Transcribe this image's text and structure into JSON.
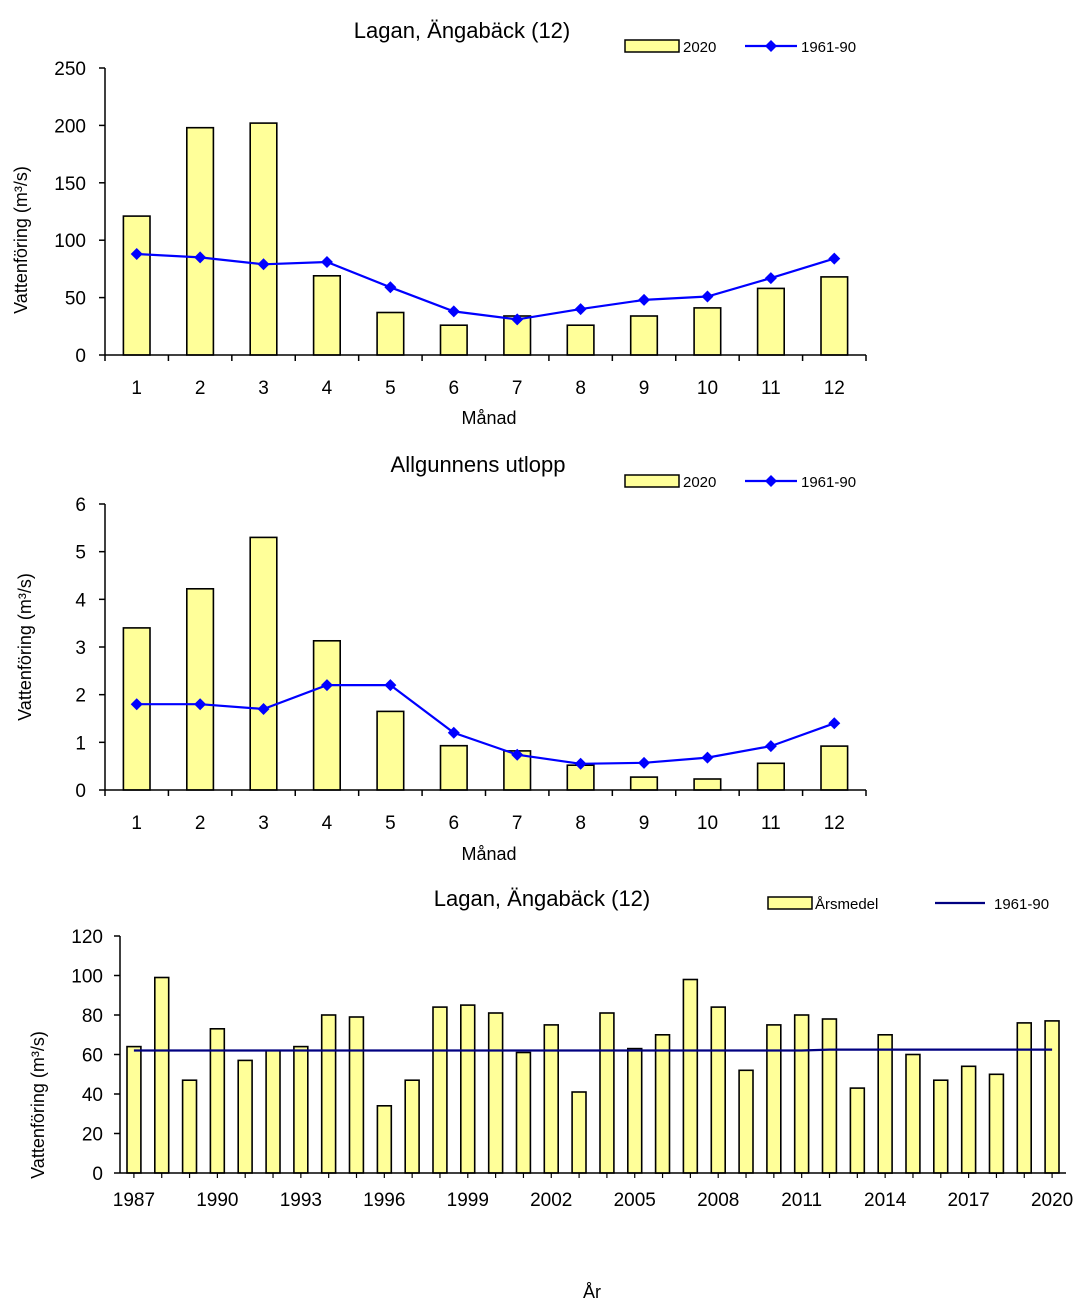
{
  "colors": {
    "bar_fill": "#FFFF99",
    "bar_stroke": "#000000",
    "line": "#0000FF",
    "line_dark": "#000080",
    "axis": "#000000"
  },
  "chart_data": [
    {
      "type": "bar",
      "title": "Lagan, Ängabäck (12)",
      "xlabel": "Månad",
      "ylabel": "Vattenföring  (m³/s)",
      "categories": [
        "1",
        "2",
        "3",
        "4",
        "5",
        "6",
        "7",
        "8",
        "9",
        "10",
        "11",
        "12"
      ],
      "ylim": [
        0,
        250
      ],
      "yticks": [
        0,
        50,
        100,
        150,
        200,
        250
      ],
      "grid": false,
      "legend_position": "top-right",
      "series": [
        {
          "name": "2020",
          "kind": "bar",
          "values": [
            121,
            198,
            202,
            69,
            37,
            26,
            34,
            26,
            34,
            41,
            58,
            68
          ]
        },
        {
          "name": "1961-90",
          "kind": "line-marker",
          "values": [
            88,
            85,
            79,
            81,
            59,
            38,
            31,
            40,
            48,
            51,
            67,
            84
          ]
        }
      ]
    },
    {
      "type": "bar",
      "title": "Allgunnens  utlopp",
      "xlabel": "Månad",
      "ylabel": "Vattenföring  (m³/s)",
      "categories": [
        "1",
        "2",
        "3",
        "4",
        "5",
        "6",
        "7",
        "8",
        "9",
        "10",
        "11",
        "12"
      ],
      "ylim": [
        0,
        6
      ],
      "yticks": [
        0,
        1,
        2,
        3,
        4,
        5,
        6
      ],
      "grid": false,
      "legend_position": "top-right",
      "series": [
        {
          "name": "2020",
          "kind": "bar",
          "values": [
            3.4,
            4.22,
            5.3,
            3.13,
            1.65,
            0.93,
            0.82,
            0.52,
            0.27,
            0.23,
            0.56,
            0.92
          ]
        },
        {
          "name": "1961-90",
          "kind": "line-marker",
          "values": [
            1.8,
            1.8,
            1.7,
            2.2,
            2.2,
            1.2,
            0.74,
            0.55,
            0.57,
            0.68,
            0.92,
            1.4
          ]
        }
      ]
    },
    {
      "type": "bar",
      "title": "Lagan, Ängabäck (12)",
      "xlabel": "År",
      "ylabel": "Vattenföring  (m³/s)",
      "x": [
        1987,
        1988,
        1989,
        1990,
        1991,
        1992,
        1993,
        1994,
        1995,
        1996,
        1997,
        1998,
        1999,
        2000,
        2001,
        2002,
        2003,
        2004,
        2005,
        2006,
        2007,
        2008,
        2009,
        2010,
        2011,
        2012,
        2013,
        2014,
        2015,
        2016,
        2017,
        2018,
        2019,
        2020
      ],
      "xtick_labels": [
        "1987",
        "1990",
        "1993",
        "1996",
        "1999",
        "2002",
        "2005",
        "2008",
        "2011",
        "2014",
        "2017",
        "2020"
      ],
      "ylim": [
        0,
        120
      ],
      "yticks": [
        0,
        20,
        40,
        60,
        80,
        100,
        120
      ],
      "grid": false,
      "legend_position": "top-right",
      "series": [
        {
          "name": "Årsmedel",
          "kind": "bar",
          "values": [
            64,
            99,
            47,
            73,
            57,
            62,
            64,
            80,
            79,
            34,
            47,
            84,
            85,
            81,
            61,
            75,
            41,
            81,
            63,
            70,
            98,
            84,
            52,
            75,
            80,
            78,
            43,
            70,
            60,
            47,
            54,
            50,
            76,
            77
          ]
        },
        {
          "name": "1961-90",
          "kind": "line",
          "values": [
            62,
            62,
            62,
            62,
            62,
            62,
            62,
            62,
            62,
            62,
            62,
            62,
            62,
            62,
            62,
            62,
            62,
            62,
            62,
            62,
            62,
            62,
            62,
            62,
            62,
            62.5,
            62.5,
            62.5,
            62.5,
            62.5,
            62.5,
            62.5,
            62.5,
            62.5
          ]
        }
      ]
    }
  ]
}
